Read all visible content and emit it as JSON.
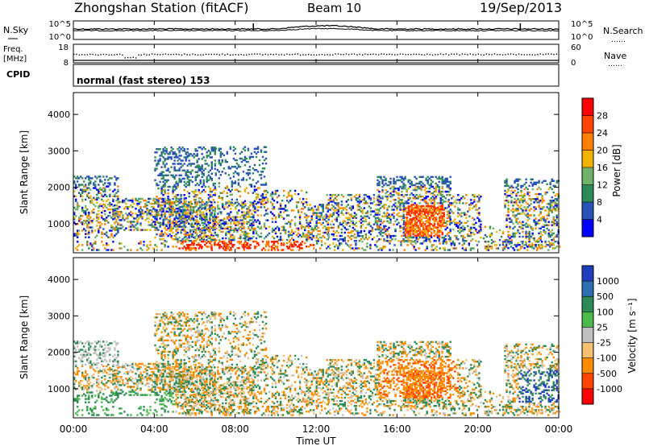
{
  "header": {
    "title": "Zhongshan Station (fitACF)",
    "beam": "Beam 10",
    "date": "19/Sep/2013"
  },
  "strip_labels": {
    "nsky": "N.Sky",
    "nsearch": "N.Search",
    "nsearch_marker": "……",
    "freq_line1": "Freq.",
    "freq_line2": "[MHz]",
    "nave": "Nave",
    "nave_marker": "……",
    "cpid_label": "CPID",
    "cpid_value": "normal (fast stereo) 153"
  },
  "chart_data": [
    {
      "type": "line",
      "name": "noise-strip",
      "left_ticks": [
        "10^5",
        "10^0"
      ],
      "right_ticks": [
        "10^5",
        "10^0"
      ],
      "series_names": [
        "N.Sky",
        "N.Search"
      ]
    },
    {
      "type": "scatter",
      "name": "freq-nave-strip",
      "left_ticks": [
        "18",
        "8"
      ],
      "right_ticks": [
        "60",
        "0"
      ],
      "series_names": [
        "Freq.",
        "Nave"
      ]
    },
    {
      "type": "heatmap",
      "name": "power-panel",
      "ylabel": "Slant Range [km]",
      "yticks": [
        "1000",
        "2000",
        "3000",
        "4000"
      ],
      "ylim": [
        200,
        4600
      ],
      "colorbar": {
        "label": "Power [dB]",
        "ticks": [
          "4",
          "8",
          "12",
          "16",
          "20",
          "24",
          "28"
        ],
        "colors": [
          "#0000ff",
          "#2852b8",
          "#2e8b57",
          "#6fb36a",
          "#f0b400",
          "#ff7f00",
          "#ff4500",
          "#ff0000"
        ]
      }
    },
    {
      "type": "heatmap",
      "name": "velocity-panel",
      "ylabel": "Slant Range [km]",
      "yticks": [
        "1000",
        "2000",
        "3000",
        "4000"
      ],
      "ylim": [
        200,
        4600
      ],
      "colorbar": {
        "label": "Velocity [m s⁻¹]",
        "ticks": [
          "1000",
          "500",
          "100",
          "25",
          "-25",
          "-100",
          "-500",
          "-1000"
        ],
        "colors": [
          "#1f3fbf",
          "#2e6fb0",
          "#2e8b57",
          "#4cbb4c",
          "#c0c0c0",
          "#f5c070",
          "#ff8c00",
          "#ff4500",
          "#ff0000"
        ]
      }
    }
  ],
  "xaxis": {
    "label": "Time UT",
    "ticks": [
      "00:00",
      "04:00",
      "08:00",
      "12:00",
      "16:00",
      "20:00",
      "00:00"
    ],
    "range_hours": [
      0,
      24
    ]
  }
}
